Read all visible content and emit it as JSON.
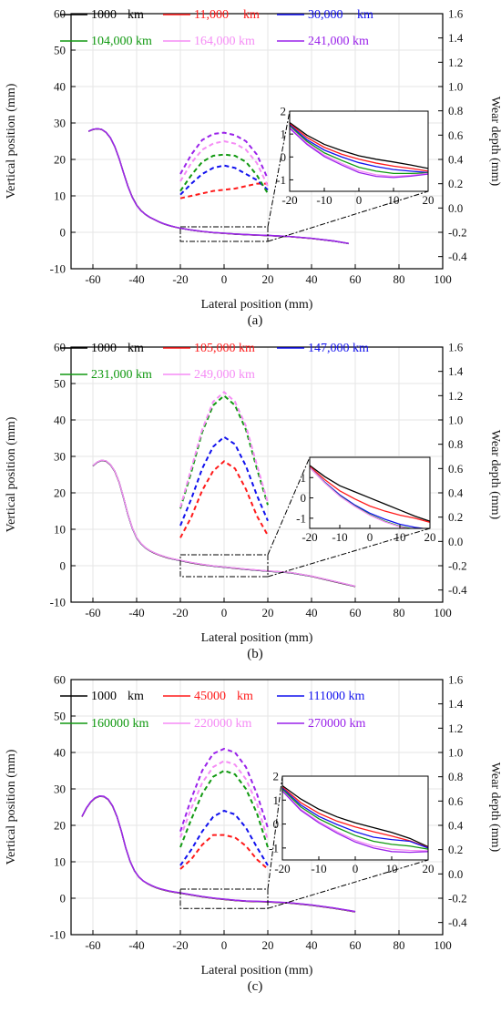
{
  "colors": {
    "black": "#000000",
    "red": "#ff1a1a",
    "blue": "#1111ee",
    "green": "#119911",
    "pink": "#f58cf5",
    "purple": "#9a22ea",
    "grid": "#e6e6e6"
  },
  "chart_data": [
    {
      "type": "line",
      "caption": "(a)",
      "xlabel": "Lateral position (mm)",
      "ylabel": "Vertical position (mm)",
      "y2label": "Wear depth (mm)",
      "xlim": [
        -70,
        100
      ],
      "ylim": [
        -10,
        60
      ],
      "y2lim": [
        -0.5,
        1.6
      ],
      "xticks": [
        -60,
        -40,
        -20,
        0,
        20,
        40,
        60,
        80,
        100
      ],
      "yticks": [
        -10,
        0,
        10,
        20,
        30,
        40,
        50,
        60
      ],
      "y2ticks": [
        -0.4,
        -0.2,
        0.0,
        0.2,
        0.4,
        0.6,
        0.8,
        1.0,
        1.2,
        1.4,
        1.6
      ],
      "grid": true,
      "legend": [
        {
          "label": "1000",
          "unit": "km",
          "color": "black"
        },
        {
          "label": "11,000",
          "unit": "km",
          "color": "red"
        },
        {
          "label": "30,000",
          "unit": "km",
          "color": "blue"
        },
        {
          "label": "104,000 km",
          "unit": "",
          "color": "green"
        },
        {
          "label": "164,000 km",
          "unit": "",
          "color": "pink"
        },
        {
          "label": "241,000 km",
          "unit": "",
          "color": "purple"
        }
      ],
      "profile": {
        "x": [
          -62,
          -60,
          -58,
          -56,
          -54,
          -52,
          -50,
          -48,
          -46,
          -44,
          -42,
          -40,
          -38,
          -36,
          -34,
          -32,
          -30,
          -28,
          -26,
          -24,
          -22,
          -20,
          -15,
          -10,
          -5,
          0,
          5,
          10,
          15,
          20,
          30,
          40,
          50,
          57
        ],
        "y": [
          27.8,
          28.3,
          28.5,
          28.3,
          27.5,
          26.0,
          23.6,
          20.3,
          16.5,
          12.8,
          9.8,
          7.6,
          6.1,
          5.0,
          4.2,
          3.6,
          3.0,
          2.5,
          2.1,
          1.75,
          1.45,
          1.2,
          0.7,
          0.3,
          0.0,
          -0.2,
          -0.4,
          -0.55,
          -0.7,
          -0.8,
          -1.1,
          -1.6,
          -2.3,
          -3.0
        ],
        "spread": [
          0.35,
          0.3,
          0.25,
          0.2,
          0.2,
          0.15,
          0.1,
          0.05
        ]
      },
      "wear_x": [
        -20,
        -15,
        -10,
        -5,
        0,
        5,
        10,
        15,
        20
      ],
      "wear_series": [
        {
          "color": "red",
          "values": [
            0.08,
            0.1,
            0.12,
            0.14,
            0.15,
            0.16,
            0.18,
            0.2,
            0.2
          ]
        },
        {
          "color": "blue",
          "values": [
            0.11,
            0.2,
            0.28,
            0.33,
            0.35,
            0.33,
            0.28,
            0.23,
            0.15
          ]
        },
        {
          "color": "green",
          "values": [
            0.14,
            0.27,
            0.38,
            0.43,
            0.44,
            0.43,
            0.38,
            0.27,
            0.12
          ]
        },
        {
          "color": "pink",
          "values": [
            0.22,
            0.37,
            0.48,
            0.53,
            0.55,
            0.53,
            0.48,
            0.37,
            0.18
          ]
        },
        {
          "color": "purple",
          "values": [
            0.28,
            0.44,
            0.56,
            0.61,
            0.62,
            0.6,
            0.55,
            0.44,
            0.24
          ]
        }
      ],
      "inset": {
        "xlim": [
          -20,
          20
        ],
        "ylim": [
          -1.5,
          2
        ],
        "xticks": [
          -20,
          -10,
          0,
          10,
          20
        ],
        "yticks": [
          -1,
          0,
          1,
          2
        ],
        "x": [
          -20,
          -15,
          -10,
          -5,
          0,
          5,
          10,
          15,
          20
        ],
        "series": [
          {
            "color": "black",
            "values": [
              1.5,
              0.95,
              0.55,
              0.28,
              0.05,
              -0.1,
              -0.22,
              -0.35,
              -0.5
            ]
          },
          {
            "color": "red",
            "values": [
              1.45,
              0.85,
              0.42,
              0.12,
              -0.1,
              -0.27,
              -0.4,
              -0.5,
              -0.62
            ]
          },
          {
            "color": "blue",
            "values": [
              1.4,
              0.75,
              0.3,
              0.0,
              -0.25,
              -0.42,
              -0.55,
              -0.62,
              -0.68
            ]
          },
          {
            "color": "green",
            "values": [
              1.35,
              0.68,
              0.18,
              -0.15,
              -0.45,
              -0.62,
              -0.72,
              -0.72,
              -0.7
            ]
          },
          {
            "color": "pink",
            "values": [
              1.3,
              0.6,
              0.08,
              -0.28,
              -0.6,
              -0.78,
              -0.85,
              -0.8,
              -0.72
            ]
          },
          {
            "color": "purple",
            "values": [
              1.25,
              0.55,
              0.02,
              -0.35,
              -0.68,
              -0.85,
              -0.9,
              -0.84,
              -0.75
            ]
          }
        ]
      },
      "zoom_box": {
        "x": [
          -20,
          20
        ],
        "y": [
          -2.5,
          1.5
        ]
      }
    },
    {
      "type": "line",
      "caption": "(b)",
      "xlabel": "Lateral position (mm)",
      "ylabel": "Vertical position (mm)",
      "y2label": "Wear depth (mm)",
      "xlim": [
        -70,
        100
      ],
      "ylim": [
        -10,
        60
      ],
      "y2lim": [
        -0.5,
        1.6
      ],
      "xticks": [
        -60,
        -40,
        -20,
        0,
        20,
        40,
        60,
        80,
        100
      ],
      "yticks": [
        -10,
        0,
        10,
        20,
        30,
        40,
        50,
        60
      ],
      "y2ticks": [
        -0.4,
        -0.2,
        0.0,
        0.2,
        0.4,
        0.6,
        0.8,
        1.0,
        1.2,
        1.4,
        1.6
      ],
      "grid": true,
      "legend": [
        {
          "label": "1000",
          "unit": "km",
          "color": "black"
        },
        {
          "label": "105,000 km",
          "unit": "",
          "color": "red"
        },
        {
          "label": "147,000 km",
          "unit": "",
          "color": "blue"
        },
        {
          "label": "231,000 km",
          "unit": "",
          "color": "green"
        },
        {
          "label": "249,000 km",
          "unit": "",
          "color": "pink"
        }
      ],
      "profile": {
        "x": [
          -60,
          -58,
          -56,
          -54,
          -52,
          -50,
          -48,
          -46,
          -44,
          -42,
          -40,
          -38,
          -36,
          -34,
          -32,
          -30,
          -28,
          -26,
          -24,
          -22,
          -20,
          -15,
          -10,
          -5,
          0,
          5,
          10,
          20,
          30,
          40,
          50,
          60
        ],
        "y": [
          27.5,
          28.5,
          29.0,
          28.8,
          27.8,
          26.0,
          23.0,
          18.8,
          14.2,
          10.5,
          7.8,
          6.2,
          5.0,
          4.2,
          3.6,
          3.1,
          2.7,
          2.3,
          2.0,
          1.75,
          1.5,
          0.9,
          0.4,
          0.0,
          -0.3,
          -0.6,
          -0.9,
          -1.4,
          -1.8,
          -2.8,
          -4.2,
          -5.6
        ],
        "spread": [
          0.4,
          0.3,
          0.25,
          0.15,
          0.05
        ]
      },
      "wear_x": [
        -20,
        -15,
        -10,
        -5,
        0,
        5,
        10,
        15,
        20
      ],
      "wear_series": [
        {
          "color": "red",
          "values": [
            0.03,
            0.2,
            0.42,
            0.58,
            0.66,
            0.6,
            0.43,
            0.21,
            0.05
          ]
        },
        {
          "color": "blue",
          "values": [
            0.13,
            0.35,
            0.6,
            0.78,
            0.86,
            0.8,
            0.62,
            0.38,
            0.17
          ]
        },
        {
          "color": "green",
          "values": [
            0.27,
            0.57,
            0.9,
            1.12,
            1.2,
            1.12,
            0.92,
            0.6,
            0.3
          ]
        },
        {
          "color": "pink",
          "values": [
            0.28,
            0.6,
            0.92,
            1.15,
            1.23,
            1.15,
            0.95,
            0.63,
            0.32
          ]
        }
      ],
      "inset": {
        "xlim": [
          -20,
          20
        ],
        "ylim": [
          -1.5,
          2
        ],
        "xticks": [
          -20,
          -10,
          0,
          10,
          20
        ],
        "yticks": [
          -1,
          0,
          1
        ],
        "x": [
          -20,
          -15,
          -10,
          -5,
          0,
          5,
          10,
          15,
          20
        ],
        "series": [
          {
            "color": "black",
            "values": [
              1.6,
              1.05,
              0.6,
              0.3,
              0.0,
              -0.3,
              -0.6,
              -0.9,
              -1.15
            ]
          },
          {
            "color": "red",
            "values": [
              1.55,
              0.9,
              0.35,
              -0.05,
              -0.4,
              -0.65,
              -0.85,
              -1.0,
              -1.2
            ]
          },
          {
            "color": "blue",
            "values": [
              1.5,
              0.78,
              0.15,
              -0.35,
              -0.75,
              -1.05,
              -1.3,
              -1.45,
              -1.55
            ]
          },
          {
            "color": "green",
            "values": [
              1.5,
              0.75,
              0.1,
              -0.4,
              -0.82,
              -1.15,
              -1.4,
              -1.55,
              -1.65
            ]
          },
          {
            "color": "pink",
            "values": [
              1.5,
              0.74,
              0.08,
              -0.42,
              -0.85,
              -1.18,
              -1.42,
              -1.58,
              -1.68
            ]
          }
        ]
      },
      "zoom_box": {
        "x": [
          -20,
          20
        ],
        "y": [
          -3,
          3
        ]
      }
    },
    {
      "type": "line",
      "caption": "(c)",
      "xlabel": "Lateral position (mm)",
      "ylabel": "Vertical position (mm)",
      "y2label": "Wear depth (mm)",
      "xlim": [
        -70,
        100
      ],
      "ylim": [
        -10,
        60
      ],
      "y2lim": [
        -0.5,
        1.6
      ],
      "xticks": [
        -60,
        -40,
        -20,
        0,
        20,
        40,
        60,
        80,
        100
      ],
      "yticks": [
        -10,
        0,
        10,
        20,
        30,
        40,
        50,
        60
      ],
      "y2ticks": [
        -0.4,
        -0.2,
        0.0,
        0.2,
        0.4,
        0.6,
        0.8,
        1.0,
        1.2,
        1.4,
        1.6
      ],
      "grid": true,
      "legend": [
        {
          "label": "1000",
          "unit": "km",
          "color": "black"
        },
        {
          "label": "45000",
          "unit": "km",
          "color": "red"
        },
        {
          "label": "111000 km",
          "unit": "",
          "color": "blue"
        },
        {
          "label": "160000 km",
          "unit": "",
          "color": "green"
        },
        {
          "label": "220000 km",
          "unit": "",
          "color": "pink"
        },
        {
          "label": "270000 km",
          "unit": "",
          "color": "purple"
        }
      ],
      "profile": {
        "x": [
          -65,
          -63,
          -61,
          -59,
          -57,
          -55,
          -53,
          -51,
          -49,
          -47,
          -45,
          -43,
          -41,
          -39,
          -37,
          -35,
          -33,
          -31,
          -29,
          -27,
          -25,
          -23,
          -21,
          -20,
          -15,
          -10,
          -5,
          0,
          5,
          10,
          20,
          30,
          40,
          50,
          60
        ],
        "y": [
          22.5,
          24.8,
          26.5,
          27.6,
          28.1,
          28.0,
          27.2,
          25.4,
          22.5,
          18.6,
          14.0,
          10.3,
          7.7,
          6.0,
          4.9,
          4.1,
          3.5,
          3.0,
          2.6,
          2.3,
          2.0,
          1.8,
          1.6,
          1.5,
          1.0,
          0.5,
          0.1,
          -0.2,
          -0.5,
          -0.7,
          -0.9,
          -1.2,
          -1.8,
          -2.6,
          -3.6
        ],
        "spread": [
          0.5,
          0.4,
          0.3,
          0.25,
          0.2,
          0.1
        ]
      },
      "wear_x": [
        -20,
        -15,
        -10,
        -5,
        0,
        5,
        10,
        15,
        20
      ],
      "wear_series": [
        {
          "color": "red",
          "values": [
            0.04,
            0.12,
            0.24,
            0.32,
            0.32,
            0.3,
            0.23,
            0.12,
            0.04
          ]
        },
        {
          "color": "blue",
          "values": [
            0.07,
            0.2,
            0.35,
            0.47,
            0.52,
            0.49,
            0.38,
            0.22,
            0.07
          ]
        },
        {
          "color": "green",
          "values": [
            0.22,
            0.45,
            0.66,
            0.8,
            0.85,
            0.82,
            0.7,
            0.5,
            0.22
          ]
        },
        {
          "color": "pink",
          "values": [
            0.3,
            0.54,
            0.75,
            0.88,
            0.93,
            0.9,
            0.78,
            0.58,
            0.28
          ]
        },
        {
          "color": "purple",
          "values": [
            0.35,
            0.62,
            0.85,
            0.99,
            1.03,
            1.0,
            0.88,
            0.66,
            0.38
          ]
        }
      ],
      "inset": {
        "xlim": [
          -20,
          20
        ],
        "ylim": [
          -1.5,
          2
        ],
        "xticks": [
          -20,
          -10,
          0,
          10,
          20
        ],
        "yticks": [
          -1,
          0,
          1,
          2
        ],
        "x": [
          -20,
          -15,
          -10,
          -5,
          0,
          5,
          10,
          15,
          20
        ],
        "series": [
          {
            "color": "black",
            "values": [
              1.6,
              1.05,
              0.62,
              0.3,
              0.05,
              -0.15,
              -0.35,
              -0.6,
              -0.95
            ]
          },
          {
            "color": "red",
            "values": [
              1.55,
              0.9,
              0.45,
              0.12,
              -0.12,
              -0.32,
              -0.5,
              -0.7,
              -0.98
            ]
          },
          {
            "color": "blue",
            "values": [
              1.5,
              0.8,
              0.32,
              -0.02,
              -0.32,
              -0.55,
              -0.65,
              -0.72,
              -1.0
            ]
          },
          {
            "color": "green",
            "values": [
              1.45,
              0.72,
              0.22,
              -0.15,
              -0.48,
              -0.72,
              -0.85,
              -0.92,
              -1.05
            ]
          },
          {
            "color": "pink",
            "values": [
              1.4,
              0.62,
              0.1,
              -0.32,
              -0.68,
              -0.92,
              -1.05,
              -1.1,
              -1.12
            ]
          },
          {
            "color": "purple",
            "values": [
              1.38,
              0.58,
              0.05,
              -0.38,
              -0.75,
              -1.0,
              -1.15,
              -1.18,
              -1.15
            ]
          }
        ]
      },
      "zoom_box": {
        "x": [
          -20,
          20
        ],
        "y": [
          -2.8,
          2.5
        ]
      }
    }
  ]
}
